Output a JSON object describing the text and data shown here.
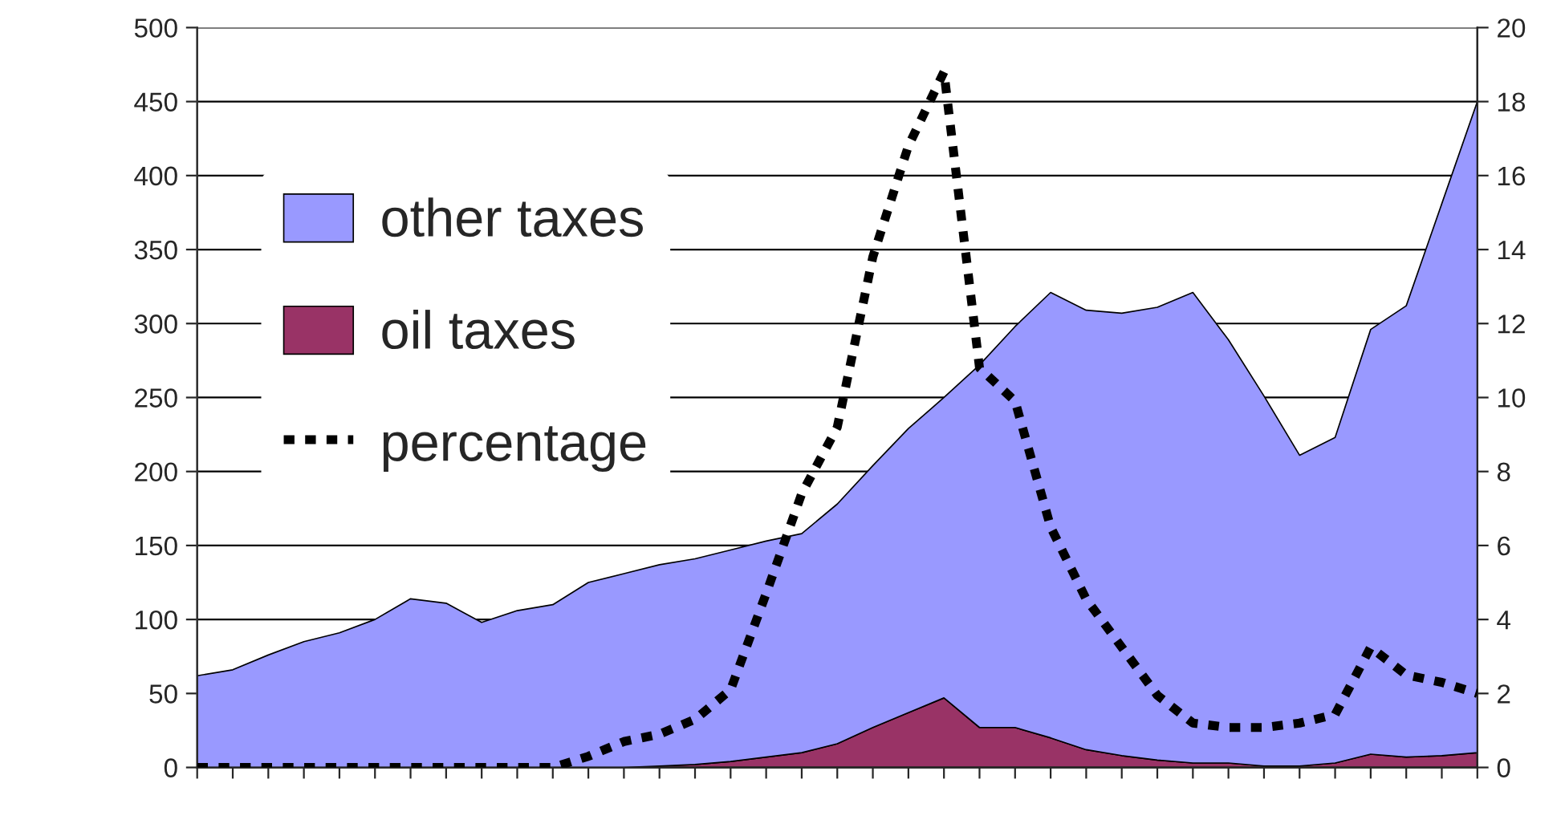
{
  "chart_data": {
    "type": "area",
    "stacked": true,
    "categories": [
      null,
      null,
      null,
      null,
      null,
      null,
      null,
      null,
      null,
      null,
      null,
      null,
      null,
      null,
      null,
      null,
      null,
      null,
      null,
      null,
      null,
      null,
      null,
      null,
      null,
      null,
      null,
      null,
      null,
      null,
      null,
      null,
      null,
      null,
      null,
      null,
      null
    ],
    "series": [
      {
        "name": "oil taxes",
        "color": "#993366",
        "values": [
          0,
          0,
          0,
          0,
          0,
          0,
          0,
          0,
          0,
          0,
          0,
          0,
          0,
          1,
          2,
          4,
          7,
          10,
          16,
          27,
          37,
          47,
          27,
          27,
          20,
          12,
          8,
          5,
          3,
          3,
          1,
          1,
          3,
          9,
          7,
          8,
          10
        ]
      },
      {
        "name": "other taxes",
        "color": "#9999ff",
        "values": [
          62,
          66,
          76,
          85,
          91,
          100,
          114,
          111,
          98,
          106,
          110,
          125,
          131,
          136,
          139,
          143,
          146,
          148,
          162,
          177,
          192,
          203,
          245,
          271,
          301,
          297,
          299,
          306,
          318,
          286,
          250,
          210,
          220,
          287,
          305,
          373,
          440
        ]
      },
      {
        "name": "percentage",
        "type": "line",
        "axis": "y2",
        "color": "#000000",
        "line_style": "dashed",
        "values": [
          0,
          0,
          0,
          0,
          0,
          0,
          0,
          0,
          0,
          0,
          0,
          0.3,
          0.7,
          0.9,
          1.3,
          2.1,
          4.7,
          7.4,
          9.2,
          13.8,
          16.8,
          18.8,
          10.8,
          9.9,
          6.5,
          4.55,
          3.25,
          1.95,
          1.2,
          1.08,
          1.08,
          1.2,
          1.43,
          3.25,
          2.5,
          2.3,
          2.0
        ]
      }
    ],
    "ylim": [
      0,
      500
    ],
    "yticks": [
      0,
      50,
      100,
      150,
      200,
      250,
      300,
      350,
      400,
      450,
      500
    ],
    "y2lim": [
      0,
      20
    ],
    "y2ticks": [
      0,
      2,
      4,
      6,
      8,
      10,
      12,
      14,
      16,
      18,
      20
    ],
    "grid": "y",
    "legend": "top left"
  }
}
